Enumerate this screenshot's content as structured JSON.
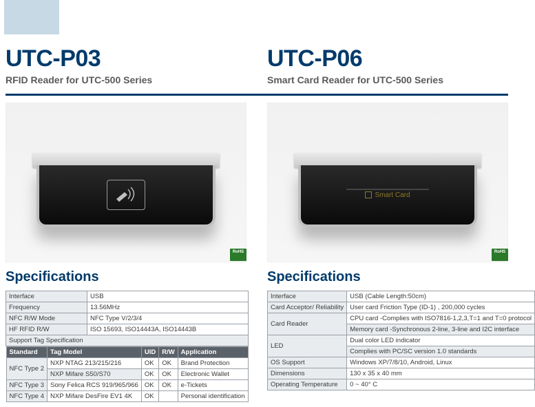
{
  "accent_color": "#003a6b",
  "left": {
    "title": "UTC-P03",
    "subtitle": "RFID Reader for UTC-500 Series",
    "spec_heading": "Specifications",
    "badge": "RoHS",
    "rows": [
      [
        "Interface",
        "USB"
      ],
      [
        "Frequency",
        "13.56MHz"
      ],
      [
        "NFC R/W Mode",
        "NFC Type V/2/3/4"
      ],
      [
        "HF RFID R/W",
        "ISO 15693, ISO14443A, ISO14443B"
      ]
    ],
    "support_heading": "Support Tag Specification",
    "support_header": [
      "Standard",
      "Tag Model",
      "UID",
      "R/W",
      "Application"
    ],
    "support_rows": [
      {
        "std": "NFC Type 2",
        "span": 2,
        "cells": [
          "NXP NTAG 213/215/216",
          "OK",
          "OK",
          "Brand Protection"
        ]
      },
      {
        "std": "",
        "cells": [
          "NXP Mifare S50/S70",
          "OK",
          "OK",
          "Electronic Wallet"
        ]
      },
      {
        "std": "NFC Type 3",
        "span": 1,
        "cells": [
          "Sony Felica RCS 919/965/966",
          "OK",
          "OK",
          "e-Tickets"
        ]
      },
      {
        "std": "NFC Type 4",
        "span": 1,
        "cells": [
          "NXP  Mifare DesFire EV1 4K",
          "OK",
          "",
          "Personal identification"
        ]
      }
    ],
    "col_widths": {
      "std": "56px",
      "model": "150px",
      "uid": "30px",
      "rw": "30px",
      "app": "auto"
    }
  },
  "right": {
    "title": "UTC-P06",
    "subtitle": "Smart Card Reader for UTC-500 Series",
    "spec_heading": "Specifications",
    "badge": "RoHS",
    "device_label": "Smart Card",
    "rows": [
      {
        "label": "Interface",
        "span": 1,
        "vals": [
          "USB (Cable Length:50cm)"
        ]
      },
      {
        "label": "Card Acceptor/ Reliability",
        "span": 1,
        "vals": [
          "User card  Friction Type (ID-1) , 200,000 cycles"
        ]
      },
      {
        "label": "Card Reader",
        "span": 2,
        "vals": [
          "CPU card -Complies with ISO7816-1,2,3,T=1 and T=0 protocol",
          "Memory card -Synchronous 2-line, 3-line and I2C interface"
        ]
      },
      {
        "label": "LED",
        "span": 2,
        "vals": [
          "Dual color LED indicator",
          "Complies with PC/SC version 1.0 standards"
        ]
      },
      {
        "label": "OS Support",
        "span": 1,
        "vals": [
          "Windows XP/7/8/10, Android, Linux"
        ]
      },
      {
        "label": "Dimensions",
        "span": 1,
        "vals": [
          "130 x 35 x 40 mm"
        ]
      },
      {
        "label": "Operating Temperature",
        "span": 1,
        "vals": [
          "0 ~ 40° C"
        ]
      }
    ]
  }
}
